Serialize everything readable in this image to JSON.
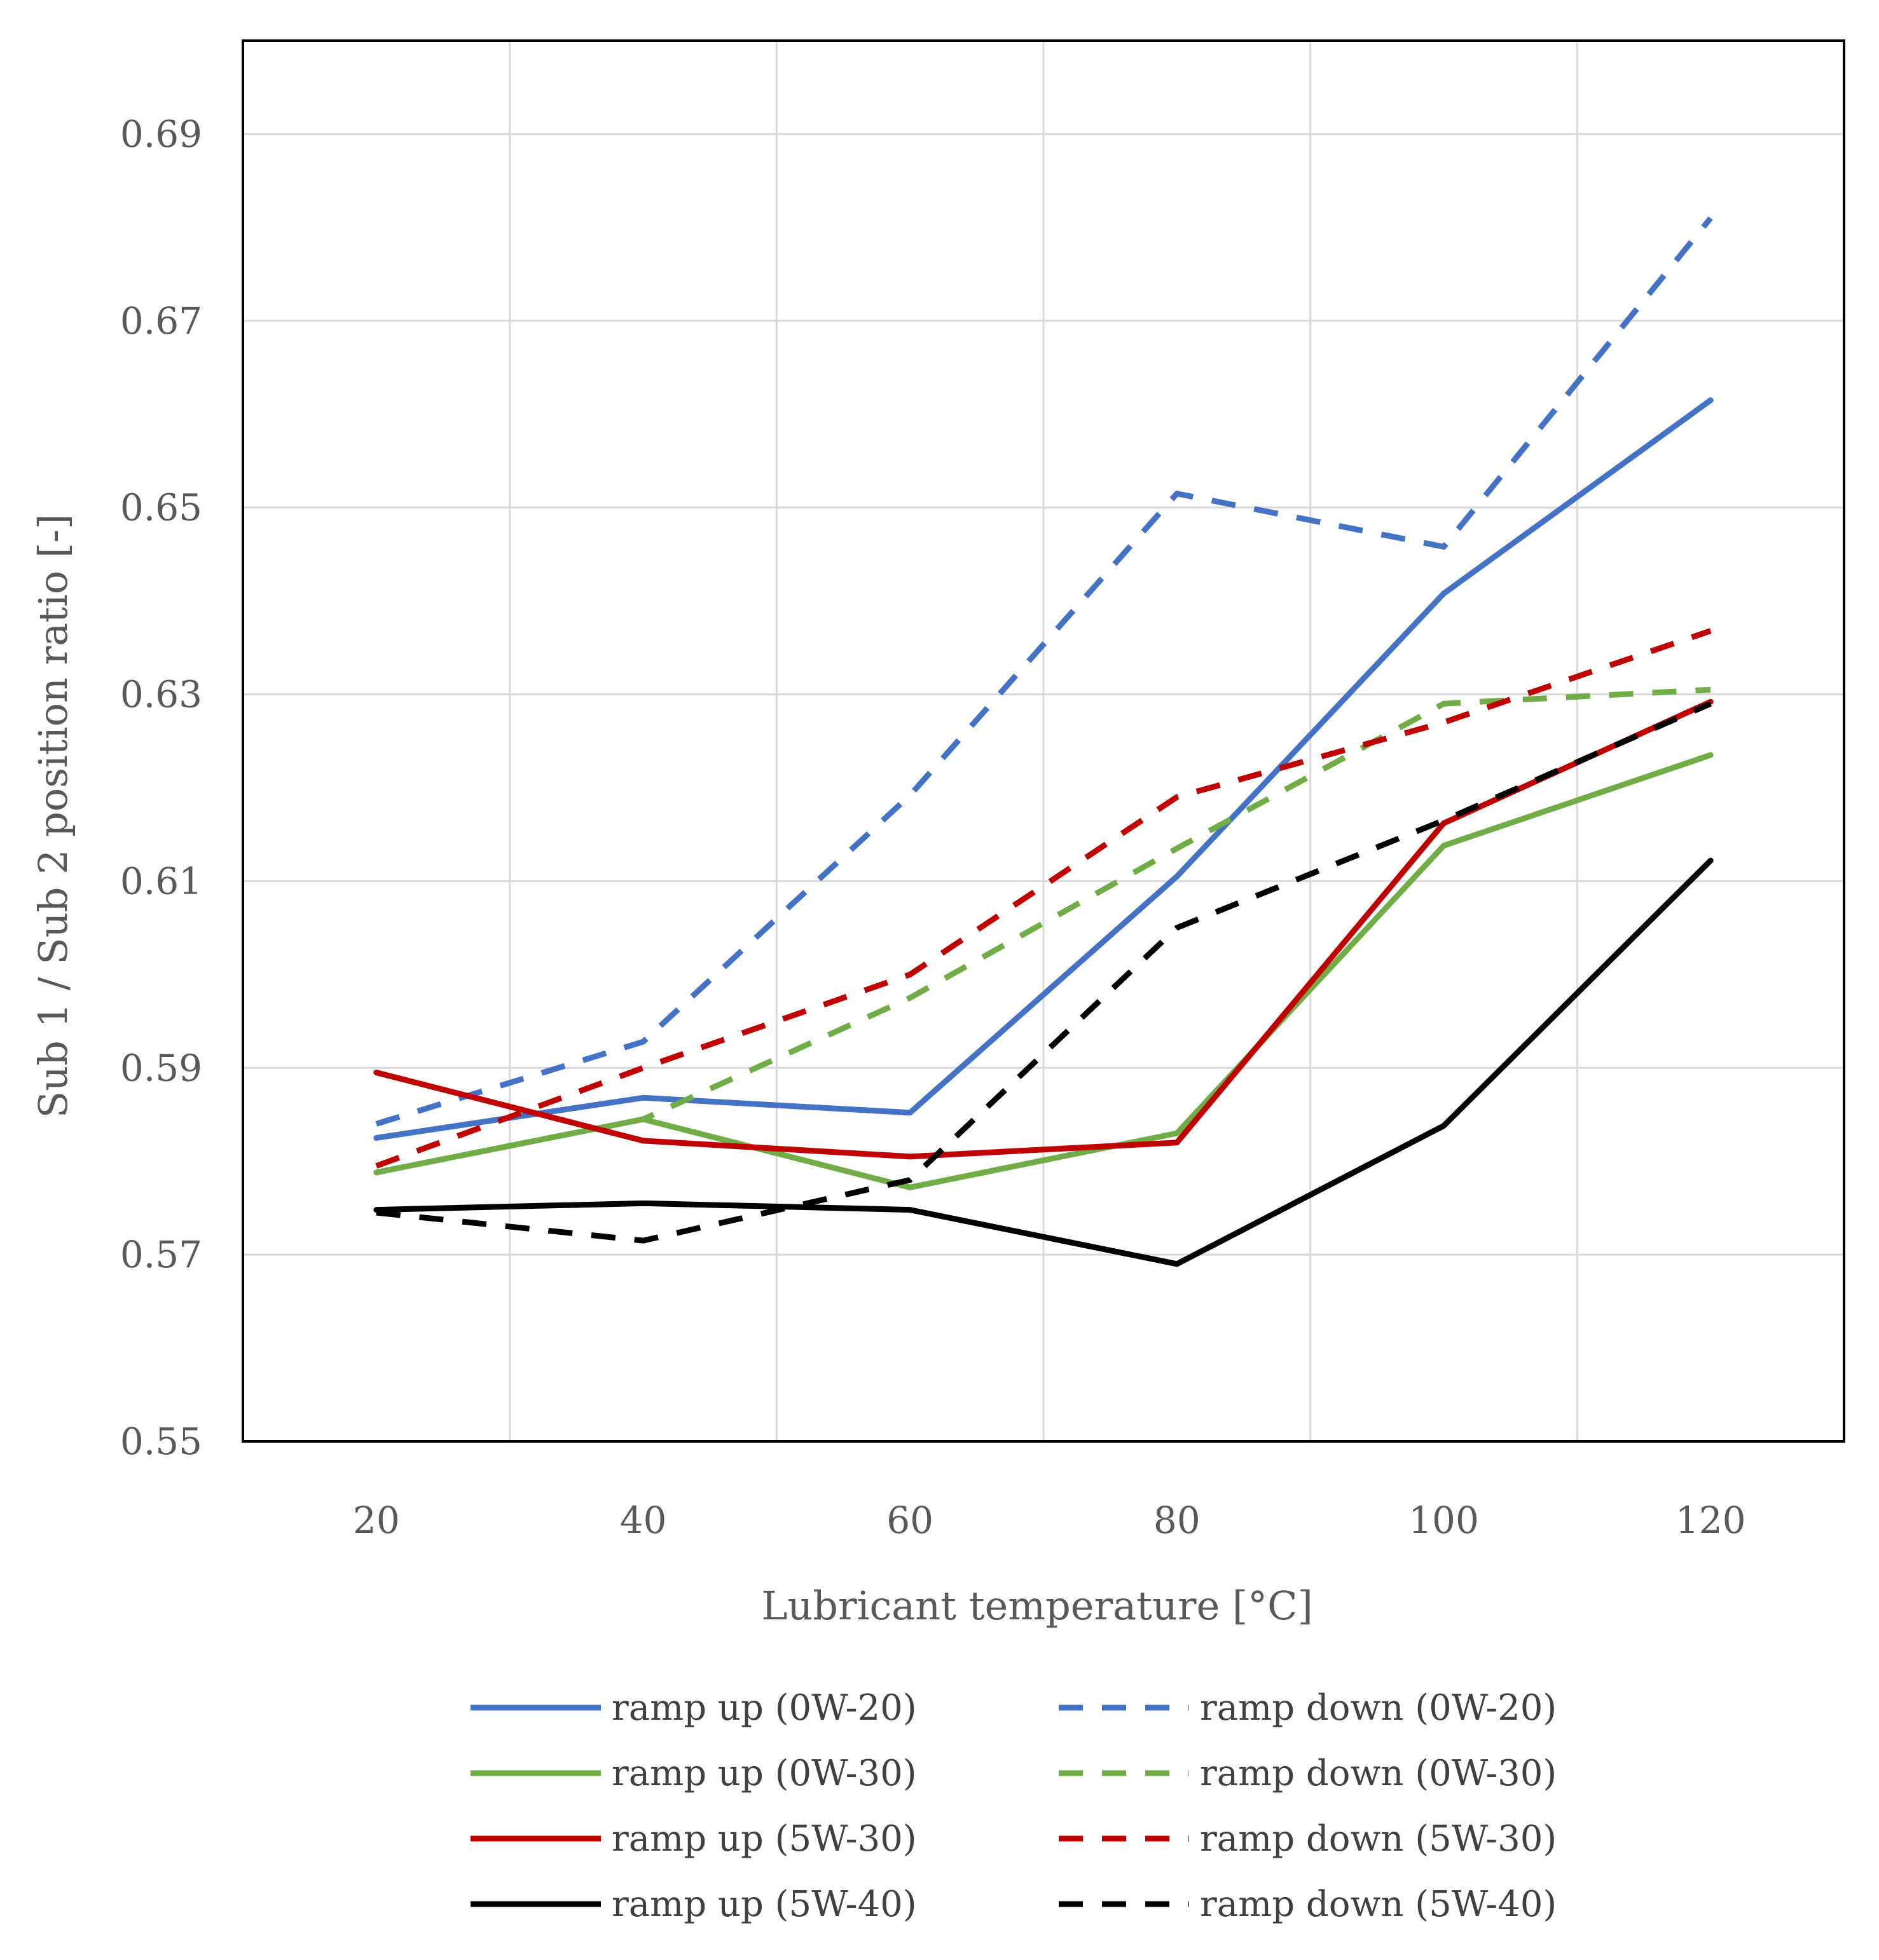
{
  "chart_data": {
    "type": "line",
    "title": "",
    "xlabel": "Lubricant temperature [°C]",
    "ylabel": "Sub 1 / Sub 2 position ratio [-]",
    "x": [
      20,
      40,
      60,
      80,
      100,
      120
    ],
    "xlim": [
      10,
      130
    ],
    "ylim": [
      0.55,
      0.7
    ],
    "x_ticks": [
      "20",
      "40",
      "60",
      "80",
      "100",
      "120"
    ],
    "x_tick_values": [
      20,
      40,
      60,
      80,
      100,
      120
    ],
    "y_ticks": [
      "0.55",
      "0.57",
      "0.59",
      "0.61",
      "0.63",
      "0.65",
      "0.67",
      "0.69"
    ],
    "y_tick_values": [
      0.55,
      0.57,
      0.59,
      0.61,
      0.63,
      0.65,
      0.67,
      0.69
    ],
    "x_grid": [
      10,
      30,
      50,
      70,
      90,
      110,
      130
    ],
    "y_grid": [
      0.55,
      0.57,
      0.59,
      0.61,
      0.63,
      0.65,
      0.67,
      0.69
    ],
    "grid": true,
    "legend_position": "bottom",
    "series": [
      {
        "name": "ramp up (0W-20)",
        "style": "solid",
        "color": "#4472C4",
        "values": [
          0.5825,
          0.5868,
          0.5852,
          0.6105,
          0.6408,
          0.6615
        ]
      },
      {
        "name": "ramp down (0W-20)",
        "style": "dashed",
        "color": "#4472C4",
        "values": [
          0.584,
          0.5928,
          0.6192,
          0.6515,
          0.6458,
          0.681
        ]
      },
      {
        "name": "ramp up (0W-30)",
        "style": "solid",
        "color": "#70AD47",
        "values": [
          0.5788,
          0.5845,
          0.5772,
          0.583,
          0.6138,
          0.6235
        ]
      },
      {
        "name": "ramp down (0W-30)",
        "style": "dashed",
        "color": "#70AD47",
        "values": [
          0.5788,
          0.5845,
          0.5975,
          0.6135,
          0.629,
          0.6305
        ]
      },
      {
        "name": "ramp up (5W-30)",
        "style": "solid",
        "color": "#C00000",
        "values": [
          0.5895,
          0.5822,
          0.5805,
          0.582,
          0.6162,
          0.6292
        ]
      },
      {
        "name": "ramp down (5W-30)",
        "style": "dashed",
        "color": "#C00000",
        "values": [
          0.5795,
          0.59,
          0.6,
          0.619,
          0.627,
          0.6368
        ]
      },
      {
        "name": "ramp up (5W-40)",
        "style": "solid",
        "color": "#000000",
        "values": [
          0.5748,
          0.5755,
          0.5748,
          0.569,
          0.5838,
          0.6122
        ]
      },
      {
        "name": "ramp down (5W-40)",
        "style": "dashed",
        "color": "#000000",
        "values": [
          0.5745,
          0.5715,
          0.578,
          0.605,
          0.6165,
          0.629
        ]
      }
    ]
  }
}
